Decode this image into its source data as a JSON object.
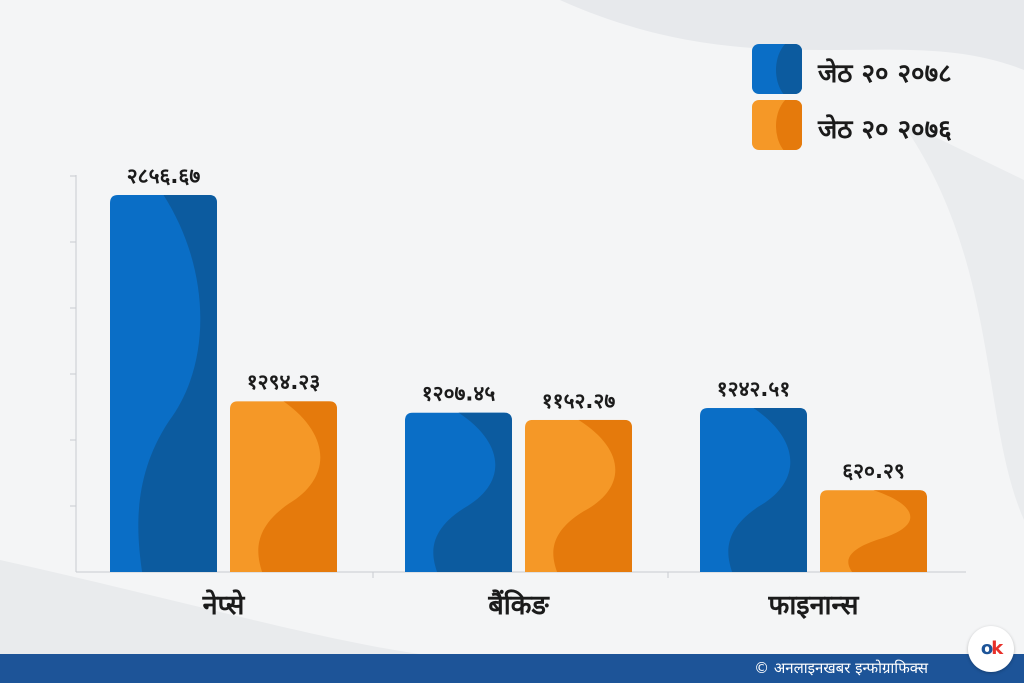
{
  "chart_data": {
    "type": "bar",
    "categories": [
      "नेप्से",
      "बैंकिङ",
      "फाइनान्स"
    ],
    "series": [
      {
        "name": "जेठ २० २०७८",
        "values": [
          2856.67,
          1207.45,
          1242.51
        ],
        "labels": [
          "२८५६.६७",
          "१२०७.४५",
          "१२४२.५१"
        ],
        "color": "#0a6ec6",
        "shade": "#0c5b9f"
      },
      {
        "name": "जेठ २० २०७६",
        "values": [
          1294.23,
          1152.27,
          620.29
        ],
        "labels": [
          "१२९४.२३",
          "११५२.२७",
          "६२०.२९"
        ],
        "color": "#f59827",
        "shade": "#e57a0c"
      }
    ],
    "ylim": [
      0,
      3000
    ],
    "grid": false,
    "legend": "top-right"
  },
  "credit": "© अनलाइनखबर इन्फोग्राफिक्स",
  "logo": {
    "text_main": "o",
    "text_accent": "k"
  }
}
